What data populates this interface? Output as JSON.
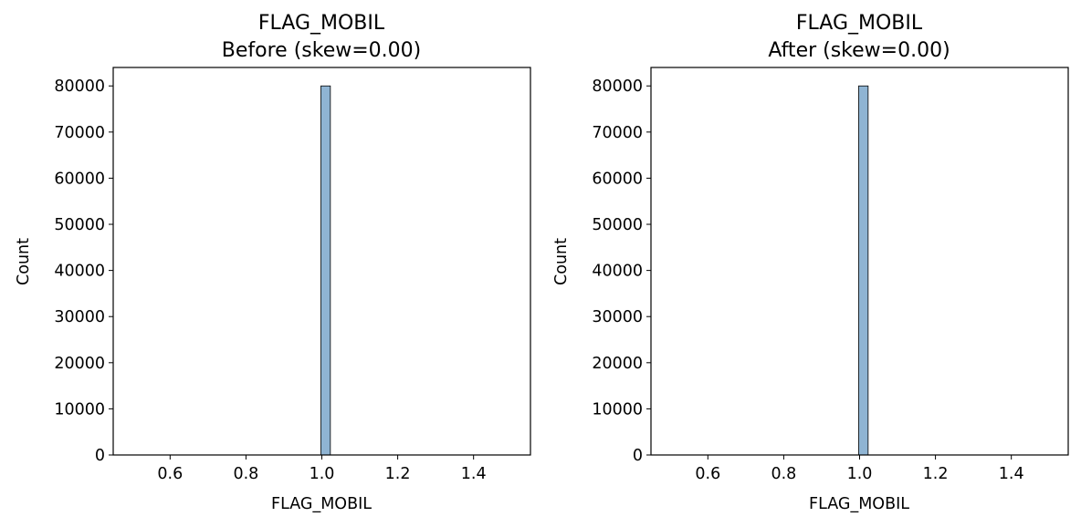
{
  "chart_data": [
    {
      "type": "bar",
      "title": "FLAG_MOBIL",
      "subtitle": "Before (skew=0.00)",
      "xlabel": "FLAG_MOBIL",
      "ylabel": "Count",
      "xlim": [
        0.45,
        1.55
      ],
      "ylim": [
        0,
        84000
      ],
      "xticks": [
        0.6,
        0.8,
        1.0,
        1.2,
        1.4
      ],
      "xtick_labels": [
        "0.6",
        "0.8",
        "1.0",
        "1.2",
        "1.4"
      ],
      "yticks": [
        0,
        10000,
        20000,
        30000,
        40000,
        50000,
        60000,
        70000,
        80000
      ],
      "ytick_labels": [
        "0",
        "10000",
        "20000",
        "30000",
        "40000",
        "50000",
        "60000",
        "70000",
        "80000"
      ],
      "bars": [
        {
          "x0": 0.9975,
          "x1": 1.0225,
          "value": 80000
        }
      ],
      "bar_color": "#8fb4d3",
      "edge_color": "#000000",
      "grid": false
    },
    {
      "type": "bar",
      "title": "FLAG_MOBIL",
      "subtitle": "After (skew=0.00)",
      "xlabel": "FLAG_MOBIL",
      "ylabel": "Count",
      "xlim": [
        0.45,
        1.55
      ],
      "ylim": [
        0,
        84000
      ],
      "xticks": [
        0.6,
        0.8,
        1.0,
        1.2,
        1.4
      ],
      "xtick_labels": [
        "0.6",
        "0.8",
        "1.0",
        "1.2",
        "1.4"
      ],
      "yticks": [
        0,
        10000,
        20000,
        30000,
        40000,
        50000,
        60000,
        70000,
        80000
      ],
      "ytick_labels": [
        "0",
        "10000",
        "20000",
        "30000",
        "40000",
        "50000",
        "60000",
        "70000",
        "80000"
      ],
      "bars": [
        {
          "x0": 0.9975,
          "x1": 1.0225,
          "value": 80000
        }
      ],
      "bar_color": "#8fb4d3",
      "edge_color": "#000000",
      "grid": false
    }
  ]
}
